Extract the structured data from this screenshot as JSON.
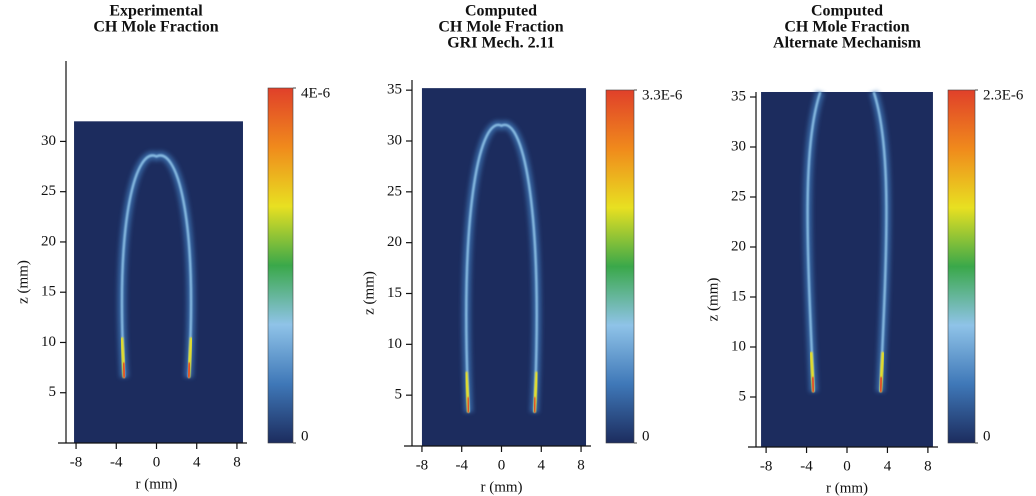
{
  "chart_data": [
    {
      "type": "image",
      "title": [
        "Experimental",
        "CH Mole Fraction"
      ],
      "xlabel": "r (mm)",
      "ylabel": "z (mm)",
      "xlim": [
        -9,
        9
      ],
      "xticks": [
        -8,
        -4,
        0,
        4,
        8
      ],
      "ylim": [
        0,
        38
      ],
      "yticks": [
        5,
        10,
        15,
        20,
        25,
        30
      ],
      "colormap": [
        "#1c2c5e",
        "#3f78b8",
        "#8fc3e8",
        "#3aa84a",
        "#e8e021",
        "#f08a1c",
        "#e0402a"
      ],
      "clim": [
        0,
        4e-06
      ],
      "cticks": [
        0,
        {
          "value": 4e-06,
          "label": "4E-6"
        }
      ]
    },
    {
      "type": "image",
      "title": [
        "Computed",
        "CH Mole Fraction",
        "GRI Mech. 2.11"
      ],
      "xlabel": "r (mm)",
      "ylabel": "z (mm)",
      "xlim": [
        -9,
        9
      ],
      "xticks": [
        -8,
        -4,
        0,
        4,
        8
      ],
      "ylim": [
        0,
        36
      ],
      "yticks": [
        5,
        10,
        15,
        20,
        25,
        30,
        35
      ],
      "colormap": [
        "#1c2c5e",
        "#3f78b8",
        "#8fc3e8",
        "#3aa84a",
        "#e8e021",
        "#f08a1c",
        "#e0402a"
      ],
      "clim": [
        0,
        3.3e-06
      ],
      "cticks": [
        0,
        {
          "value": 3.3e-06,
          "label": "3.3E-6"
        }
      ]
    },
    {
      "type": "image",
      "title": [
        "Computed",
        "CH Mole Fraction",
        "Alternate Mechanism"
      ],
      "xlabel": "r (mm)",
      "ylabel": "z (mm)",
      "xlim": [
        -9,
        9
      ],
      "xticks": [
        -8,
        -4,
        0,
        4,
        8
      ],
      "ylim": [
        0,
        35.5
      ],
      "yticks": [
        5,
        10,
        15,
        20,
        25,
        30,
        35
      ],
      "colormap": [
        "#1c2c5e",
        "#3f78b8",
        "#8fc3e8",
        "#3aa84a",
        "#e8e021",
        "#f08a1c",
        "#e0402a"
      ],
      "clim": [
        0,
        2.3e-06
      ],
      "cticks": [
        0,
        {
          "value": 2.3e-06,
          "label": "2.3E-6"
        }
      ]
    }
  ]
}
